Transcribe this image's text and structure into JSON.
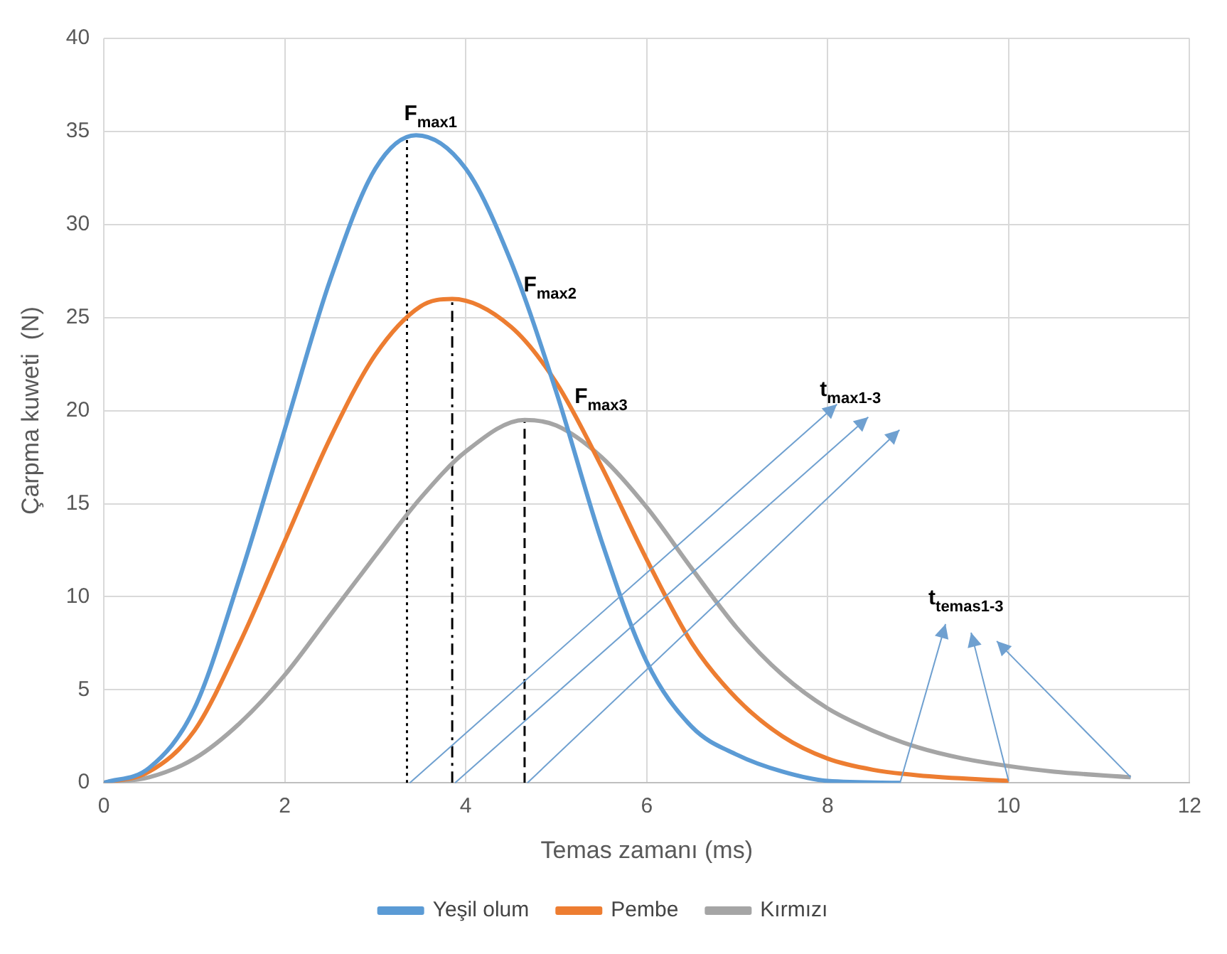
{
  "chart_data": {
    "type": "line",
    "xlabel": "Temas zamanı (ms)",
    "ylabel": "Çarpma kuweti  (N)",
    "xlim": [
      0,
      12
    ],
    "xticks": [
      0,
      2,
      4,
      6,
      8,
      10,
      12
    ],
    "ylim": [
      0,
      40
    ],
    "yticks": [
      0,
      5,
      10,
      15,
      20,
      25,
      30,
      35,
      40
    ],
    "grid": true,
    "legend": "bottom",
    "marker": "none",
    "series": [
      {
        "name": "Yeşil olum",
        "color": "#5b9bd5",
        "x": [
          0,
          0.5,
          1,
          1.5,
          2,
          2.5,
          3,
          3.45,
          4,
          4.5,
          5,
          5.5,
          6,
          6.5,
          7,
          7.5,
          8,
          8.8
        ],
        "values": [
          0,
          0.8,
          4,
          11,
          19,
          27,
          33,
          34.8,
          33,
          28,
          21,
          13,
          6.5,
          3,
          1.5,
          0.6,
          0.1,
          0
        ]
      },
      {
        "name": "Pembe",
        "color": "#ed7d31",
        "x": [
          0,
          0.5,
          1,
          1.5,
          2,
          2.5,
          3,
          3.5,
          3.85,
          4.5,
          5,
          5.5,
          6,
          6.5,
          7,
          7.5,
          8,
          8.5,
          9,
          10
        ],
        "values": [
          0,
          0.6,
          2.8,
          7.5,
          13,
          18.5,
          23,
          25.6,
          26,
          24.5,
          21.5,
          17,
          12,
          7.5,
          4.5,
          2.5,
          1.3,
          0.7,
          0.4,
          0.1
        ]
      },
      {
        "name": "Kırmızı",
        "color": "#a5a5a5",
        "x": [
          0,
          0.5,
          1,
          1.5,
          2,
          2.5,
          3,
          3.5,
          4,
          4.65,
          5,
          5.5,
          6,
          6.5,
          7,
          7.5,
          8,
          8.5,
          9,
          9.5,
          10,
          10.5,
          11.35
        ],
        "values": [
          0,
          0.3,
          1.3,
          3.2,
          5.8,
          9,
          12.2,
          15.3,
          17.8,
          19.5,
          19.2,
          17.5,
          14.8,
          11.5,
          8.3,
          5.8,
          4,
          2.8,
          1.9,
          1.3,
          0.9,
          0.6,
          0.3
        ]
      },
      {
        "type": "line",
        "color": "#000000",
        "line_style": "dotted",
        "x": [
          3.35,
          3.35
        ],
        "values": [
          0,
          34.8
        ]
      },
      {
        "type": "line",
        "color": "#000000",
        "line_style": "dashdot",
        "x": [
          3.85,
          3.85
        ],
        "values": [
          0,
          26
        ]
      },
      {
        "type": "line",
        "color": "#000000",
        "line_style": "dashed",
        "x": [
          4.65,
          4.65
        ],
        "values": [
          0,
          19.5
        ]
      }
    ],
    "annotations": [
      "F$_{max1}$",
      "F$_{max2}$",
      "F$_{max3}$",
      "t$_{max1-3}$",
      "t$_{temas1-3}$"
    ]
  }
}
